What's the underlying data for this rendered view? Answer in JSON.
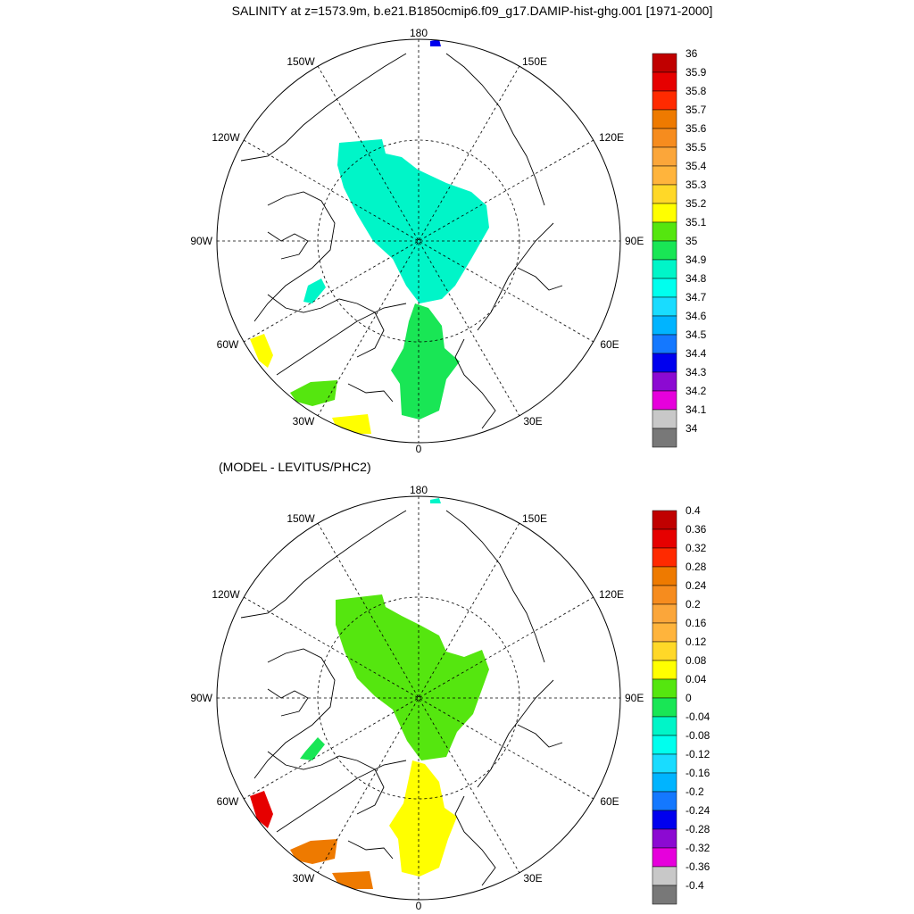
{
  "title": "SALINITY at z=1573.9m, b.e21.B1850cmip6.f09_g17.DAMIP-hist-ghg.001 [1971-2000]",
  "diff_title": "(MODEL - LEVITUS/PHC2)",
  "longitude_labels": {
    "top": "180",
    "bottom": "0",
    "left": "90W",
    "right": "90E",
    "w150": "150W",
    "e150": "150E",
    "w120": "120W",
    "e120": "120E",
    "w60": "60W",
    "e60": "60E",
    "w30": "30W",
    "e30": "30E"
  },
  "projection": "north polar stereographic",
  "grid": "dashed lines every 30 degrees of longitude and 80N latitude circle",
  "colorbar_top": {
    "labels": [
      "36",
      "35.9",
      "35.8",
      "35.7",
      "35.6",
      "35.5",
      "35.4",
      "35.3",
      "35.2",
      "35.1",
      "35",
      "34.9",
      "34.8",
      "34.7",
      "34.6",
      "34.5",
      "34.4",
      "34.3",
      "34.2",
      "34.1",
      "34"
    ],
    "colors": [
      "#c00000",
      "#e60000",
      "#ff2a00",
      "#ee7a00",
      "#f68c1e",
      "#fba63a",
      "#ffb43c",
      "#ffd828",
      "#ffff00",
      "#55e60f",
      "#19e655",
      "#00f5c8",
      "#00ffee",
      "#19dcff",
      "#00b4ff",
      "#1478ff",
      "#0000ee",
      "#8c0ad2",
      "#e600dc",
      "#c8c8c8",
      "#787878"
    ]
  },
  "colorbar_bottom": {
    "labels": [
      "0.4",
      "0.36",
      "0.32",
      "0.28",
      "0.24",
      "0.2",
      "0.16",
      "0.12",
      "0.08",
      "0.04",
      "0",
      "-0.04",
      "-0.08",
      "-0.12",
      "-0.16",
      "-0.2",
      "-0.24",
      "-0.28",
      "-0.32",
      "-0.36",
      "-0.4"
    ],
    "colors": [
      "#c00000",
      "#e60000",
      "#ff2a00",
      "#ee7a00",
      "#f68c1e",
      "#fba63a",
      "#ffb43c",
      "#ffd828",
      "#ffff00",
      "#55e60f",
      "#19e655",
      "#00f5c8",
      "#00ffee",
      "#19dcff",
      "#00b4ff",
      "#1478ff",
      "#0000ee",
      "#8c0ad2",
      "#e600dc",
      "#c8c8c8",
      "#787878"
    ]
  },
  "fields_top": {
    "central_arctic": "#00f5c8",
    "nordic_seas": "#19e655",
    "baffin_bay": "#00f5c8",
    "labrador_sea": "#ffff00",
    "north_atlantic_west": "#55e60f",
    "north_atlantic_east": "#ffff00",
    "bering_strait": "#0000ee"
  },
  "fields_bottom": {
    "central_arctic": "#55e60f",
    "nordic_seas": "#ffff00",
    "baffin_bay": "#19e655",
    "labrador_sea": "#e60000",
    "north_atlantic_west": "#ee7a00",
    "north_atlantic_east": "#ee7a00",
    "bering_strait": "#00f5c8"
  }
}
